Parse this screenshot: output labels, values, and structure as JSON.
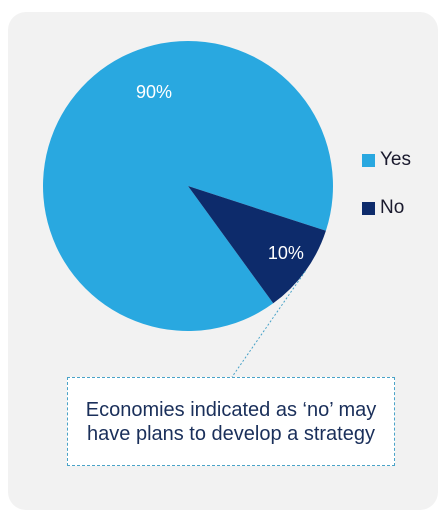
{
  "colors": {
    "yes": "#29a8e0",
    "no": "#0d2b6b",
    "background": "#f2f2f2",
    "callout_border": "#4aa3c8"
  },
  "chart_data": {
    "type": "pie",
    "title": "",
    "categories": [
      "Yes",
      "No"
    ],
    "values": [
      90,
      10
    ],
    "data_labels": [
      "90%",
      "10%"
    ],
    "legend_position": "right",
    "start_angle_note": "No slice starts near 12 o'clock offset, clockwise"
  },
  "legend": {
    "items": [
      {
        "label": "Yes",
        "color": "#29a8e0"
      },
      {
        "label": "No",
        "color": "#0d2b6b"
      }
    ]
  },
  "callout": {
    "text": "Economies indicated as ‘no’ may have plans to develop a strategy"
  }
}
